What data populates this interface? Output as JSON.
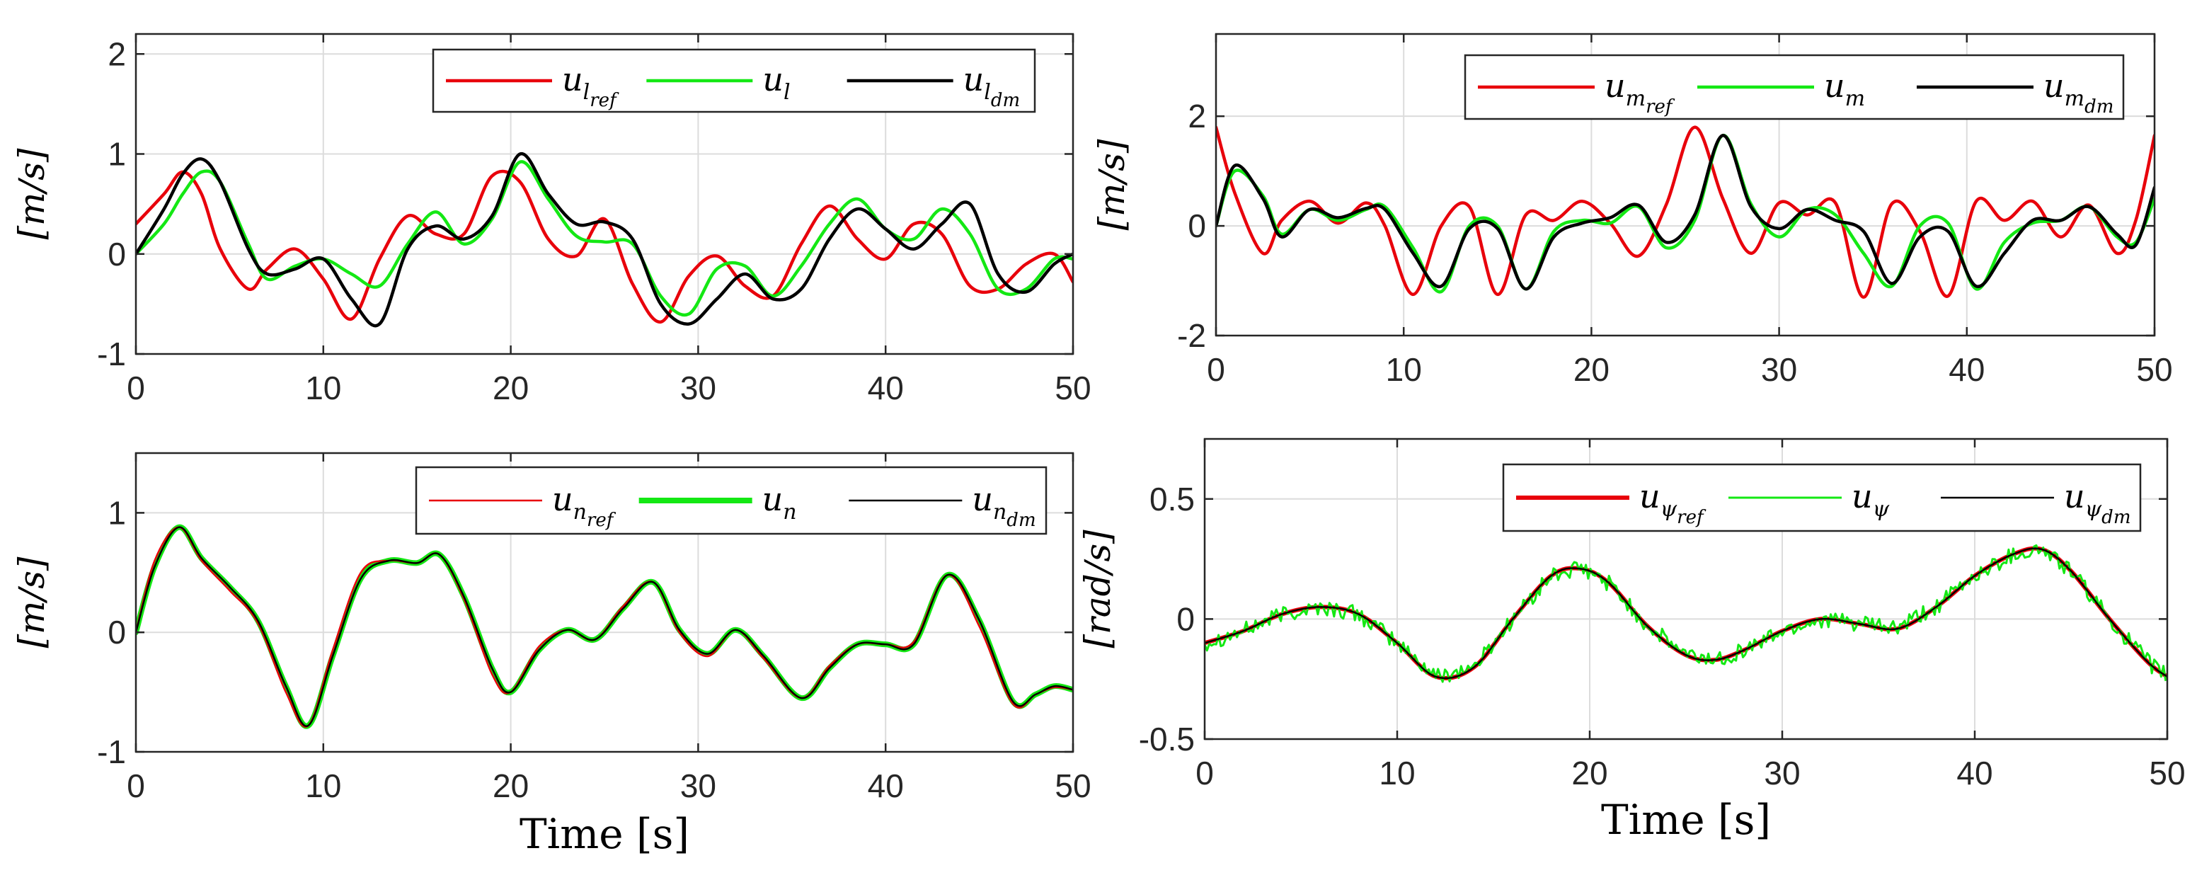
{
  "colors": {
    "ref": "#e8000b",
    "actual": "#14e814",
    "dm": "#000000",
    "grid": "#dcdcdc",
    "axis": "#262626"
  },
  "chart_data": [
    {
      "id": "ul",
      "type": "line",
      "ylabel": "[m/s]",
      "xlabel": "",
      "xlim": [
        0,
        50
      ],
      "ylim": [
        -1,
        2.2
      ],
      "xticks": [
        "0",
        "10",
        "20",
        "30",
        "40",
        "50"
      ],
      "yticks": [
        "-1",
        "0",
        "1",
        "2"
      ],
      "legend": [
        {
          "base": "u",
          "sub": "l",
          "subsub": "ref"
        },
        {
          "base": "u",
          "sub": "l",
          "subsub": ""
        },
        {
          "base": "u",
          "sub": "l",
          "subsub": "dm"
        }
      ],
      "legend_position": "top-right",
      "x": [
        0,
        1.5,
        2.5,
        3.5,
        4.5,
        6,
        7,
        8.5,
        10,
        11.5,
        13,
        14.5,
        16,
        17.5,
        19,
        20.5,
        22,
        23.5,
        25,
        26.5,
        28,
        29.5,
        31,
        32.5,
        34,
        35.5,
        37,
        38.5,
        40,
        41.5,
        43,
        44.5,
        46,
        47.5,
        49,
        50
      ],
      "series": [
        {
          "name": "ref",
          "color": "ref",
          "width": 4.5,
          "values": [
            0.3,
            0.6,
            0.82,
            0.6,
            0.05,
            -0.35,
            -0.15,
            0.05,
            -0.25,
            -0.65,
            -0.05,
            0.38,
            0.2,
            0.2,
            0.78,
            0.72,
            0.15,
            -0.02,
            0.35,
            -0.3,
            -0.68,
            -0.22,
            -0.02,
            -0.32,
            -0.42,
            0.1,
            0.48,
            0.15,
            -0.05,
            0.3,
            0.2,
            -0.32,
            -0.35,
            -0.1,
            0.0,
            -0.28
          ]
        },
        {
          "name": "actual",
          "color": "actual",
          "width": 4.5,
          "values": [
            0.0,
            0.3,
            0.6,
            0.82,
            0.72,
            0.1,
            -0.25,
            -0.12,
            -0.05,
            -0.2,
            -0.32,
            0.1,
            0.42,
            0.1,
            0.35,
            0.92,
            0.55,
            0.18,
            0.12,
            0.1,
            -0.42,
            -0.6,
            -0.15,
            -0.12,
            -0.42,
            -0.12,
            0.3,
            0.55,
            0.25,
            0.15,
            0.45,
            0.2,
            -0.35,
            -0.35,
            -0.05,
            -0.05
          ]
        },
        {
          "name": "dm",
          "color": "dm",
          "width": 4.5,
          "values": [
            0.0,
            0.45,
            0.8,
            0.95,
            0.72,
            0.05,
            -0.2,
            -0.15,
            -0.05,
            -0.45,
            -0.7,
            0.05,
            0.28,
            0.15,
            0.38,
            1.0,
            0.6,
            0.3,
            0.32,
            0.15,
            -0.5,
            -0.7,
            -0.45,
            -0.2,
            -0.45,
            -0.35,
            0.15,
            0.45,
            0.25,
            0.05,
            0.3,
            0.5,
            -0.2,
            -0.38,
            -0.1,
            0.0
          ]
        }
      ]
    },
    {
      "id": "um",
      "type": "line",
      "ylabel": "[m/s]",
      "xlabel": "",
      "xlim": [
        0,
        50
      ],
      "ylim": [
        -2,
        3.5
      ],
      "xticks": [
        "0",
        "10",
        "20",
        "30",
        "40",
        "50"
      ],
      "yticks": [
        "-2",
        "0",
        "2"
      ],
      "legend": [
        {
          "base": "u",
          "sub": "m",
          "subsub": "ref"
        },
        {
          "base": "u",
          "sub": "m",
          "subsub": ""
        },
        {
          "base": "u",
          "sub": "m",
          "subsub": "dm"
        }
      ],
      "legend_position": "top-right",
      "x": [
        0,
        1,
        2.5,
        3.5,
        5,
        6.5,
        8,
        9,
        10.5,
        12,
        13.5,
        15,
        16.5,
        18,
        19.5,
        21,
        22.5,
        24,
        25.5,
        27,
        28.5,
        30,
        31.5,
        33,
        34.5,
        36,
        37.5,
        39,
        40.5,
        42,
        43.5,
        45,
        46.5,
        48,
        49,
        50
      ],
      "series": [
        {
          "name": "ref",
          "color": "ref",
          "width": 4.5,
          "values": [
            1.8,
            0.6,
            -0.5,
            0.1,
            0.45,
            0.05,
            0.42,
            0.0,
            -1.25,
            0.0,
            0.35,
            -1.25,
            0.2,
            0.1,
            0.45,
            0.05,
            -0.55,
            0.4,
            1.8,
            0.5,
            -0.5,
            0.42,
            0.2,
            0.42,
            -1.3,
            0.4,
            -0.1,
            -1.28,
            0.45,
            0.1,
            0.45,
            -0.2,
            0.38,
            -0.5,
            0.1,
            1.65
          ]
        },
        {
          "name": "actual",
          "color": "actual",
          "width": 4.5,
          "values": [
            0.0,
            1.0,
            0.55,
            -0.15,
            0.3,
            0.1,
            0.3,
            0.35,
            -0.4,
            -1.2,
            0.0,
            0.0,
            -1.15,
            -0.1,
            0.1,
            0.05,
            0.35,
            -0.4,
            0.1,
            1.65,
            0.4,
            -0.2,
            0.3,
            0.2,
            -0.5,
            -1.1,
            0.0,
            0.05,
            -1.15,
            -0.3,
            0.05,
            0.1,
            0.35,
            -0.2,
            -0.3,
            0.5
          ]
        },
        {
          "name": "dm",
          "color": "dm",
          "width": 4.5,
          "values": [
            0.0,
            1.1,
            0.5,
            -0.2,
            0.3,
            0.15,
            0.32,
            0.3,
            -0.5,
            -1.1,
            -0.05,
            -0.05,
            -1.15,
            -0.2,
            0.05,
            0.15,
            0.38,
            -0.3,
            0.2,
            1.65,
            0.35,
            -0.05,
            0.3,
            0.1,
            -0.1,
            -1.05,
            -0.2,
            -0.1,
            -1.1,
            -0.5,
            0.1,
            0.1,
            0.35,
            -0.15,
            -0.35,
            0.7
          ]
        }
      ]
    },
    {
      "id": "un",
      "type": "line",
      "ylabel": "[m/s]",
      "xlabel": "Time [s]",
      "xlim": [
        0,
        50
      ],
      "ylim": [
        -1,
        1.5
      ],
      "xticks": [
        "0",
        "10",
        "20",
        "30",
        "40",
        "50"
      ],
      "yticks": [
        "-1",
        "0",
        "1"
      ],
      "legend": [
        {
          "base": "u",
          "sub": "n",
          "subsub": "ref"
        },
        {
          "base": "u",
          "sub": "n",
          "subsub": ""
        },
        {
          "base": "u",
          "sub": "n",
          "subsub": "dm"
        }
      ],
      "legend_position": "top-right",
      "x": [
        0,
        1,
        2.3,
        3.5,
        5,
        6.5,
        8,
        9.2,
        10.5,
        12,
        13.5,
        15,
        16.2,
        17.5,
        19,
        20,
        21.5,
        23,
        24.5,
        26,
        27.6,
        29,
        30.5,
        32,
        33.5,
        35.5,
        37,
        38.5,
        40,
        41.5,
        43.3,
        45,
        46.8,
        48,
        49,
        50
      ],
      "series": [
        {
          "name": "actual",
          "color": "actual",
          "width": 8,
          "values": [
            0.0,
            0.55,
            0.88,
            0.62,
            0.38,
            0.1,
            -0.45,
            -0.78,
            -0.2,
            0.45,
            0.6,
            0.58,
            0.65,
            0.3,
            -0.3,
            -0.5,
            -0.15,
            0.02,
            -0.06,
            0.2,
            0.42,
            0.02,
            -0.18,
            0.02,
            -0.2,
            -0.55,
            -0.3,
            -0.1,
            -0.1,
            -0.1,
            0.48,
            0.1,
            -0.58,
            -0.52,
            -0.45,
            -0.48
          ]
        },
        {
          "name": "ref",
          "color": "ref",
          "width": 2.5,
          "values": [
            0.0,
            0.6,
            0.88,
            0.6,
            0.35,
            0.08,
            -0.5,
            -0.78,
            -0.15,
            0.5,
            0.6,
            0.58,
            0.65,
            0.28,
            -0.35,
            -0.5,
            -0.12,
            0.02,
            -0.06,
            0.22,
            0.42,
            0.0,
            -0.2,
            0.02,
            -0.22,
            -0.55,
            -0.28,
            -0.1,
            -0.1,
            -0.08,
            0.48,
            0.05,
            -0.6,
            -0.52,
            -0.46,
            -0.48
          ]
        },
        {
          "name": "dm",
          "color": "dm",
          "width": 2.5,
          "values": [
            0.0,
            0.55,
            0.88,
            0.62,
            0.38,
            0.1,
            -0.45,
            -0.78,
            -0.2,
            0.45,
            0.6,
            0.58,
            0.65,
            0.3,
            -0.3,
            -0.5,
            -0.15,
            0.02,
            -0.06,
            0.2,
            0.42,
            0.02,
            -0.18,
            0.02,
            -0.2,
            -0.55,
            -0.3,
            -0.1,
            -0.1,
            -0.1,
            0.48,
            0.1,
            -0.58,
            -0.52,
            -0.45,
            -0.48
          ]
        }
      ]
    },
    {
      "id": "upsi",
      "type": "line",
      "ylabel": "[rad/s]",
      "xlabel": "Time [s]",
      "xlim": [
        0,
        50
      ],
      "ylim": [
        -0.5,
        0.75
      ],
      "xticks": [
        "0",
        "10",
        "20",
        "30",
        "40",
        "50"
      ],
      "yticks": [
        "-0.5",
        "0",
        "0.5"
      ],
      "legend": [
        {
          "base": "u",
          "sub": "ψ",
          "subsub": "ref"
        },
        {
          "base": "u",
          "sub": "ψ",
          "subsub": ""
        },
        {
          "base": "u",
          "sub": "ψ",
          "subsub": "dm"
        }
      ],
      "legend_position": "top-right",
      "noise_amplitude": 0.035,
      "x": [
        0,
        2,
        4,
        6,
        8,
        10,
        12,
        14,
        16,
        18,
        19.5,
        21,
        23,
        25,
        26.5,
        28,
        30,
        32,
        34,
        36,
        38,
        40,
        42,
        43.5,
        45,
        47,
        49,
        50
      ],
      "series": [
        {
          "name": "ref",
          "color": "ref",
          "width": 6,
          "values": [
            -0.1,
            -0.05,
            0.02,
            0.05,
            0.02,
            -0.1,
            -0.24,
            -0.2,
            0.0,
            0.18,
            0.21,
            0.15,
            -0.03,
            -0.15,
            -0.17,
            -0.13,
            -0.05,
            0.0,
            -0.02,
            -0.04,
            0.05,
            0.18,
            0.27,
            0.29,
            0.2,
            0.0,
            -0.18,
            -0.24
          ]
        },
        {
          "name": "actual",
          "color": "actual",
          "width": 3,
          "noisy": true,
          "values": [
            -0.1,
            -0.05,
            0.02,
            0.05,
            0.02,
            -0.1,
            -0.24,
            -0.2,
            0.0,
            0.18,
            0.21,
            0.15,
            -0.03,
            -0.15,
            -0.17,
            -0.13,
            -0.05,
            0.0,
            -0.02,
            -0.04,
            0.05,
            0.18,
            0.27,
            0.29,
            0.2,
            0.0,
            -0.18,
            -0.24
          ]
        },
        {
          "name": "dm",
          "color": "dm",
          "width": 2.5,
          "values": [
            -0.1,
            -0.05,
            0.02,
            0.05,
            0.02,
            -0.1,
            -0.24,
            -0.2,
            0.0,
            0.18,
            0.21,
            0.15,
            -0.03,
            -0.15,
            -0.17,
            -0.13,
            -0.05,
            0.0,
            -0.02,
            -0.04,
            0.05,
            0.18,
            0.27,
            0.29,
            0.2,
            0.0,
            -0.18,
            -0.24
          ]
        }
      ]
    }
  ]
}
